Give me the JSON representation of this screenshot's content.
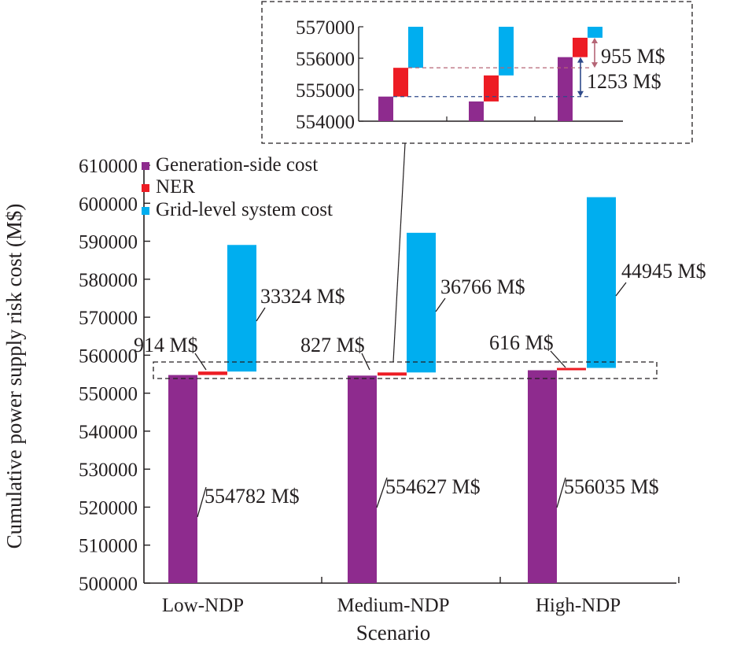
{
  "chart_data": {
    "type": "bar",
    "subtype": "waterfall-stacked",
    "xlabel": "Scenario",
    "ylabel": "Cumulative power supply risk cost (M$)",
    "ylim": [
      500000,
      610000
    ],
    "yticks": [
      "500000",
      "510000",
      "520000",
      "530000",
      "540000",
      "550000",
      "560000",
      "570000",
      "580000",
      "590000",
      "600000",
      "610000"
    ],
    "categories": [
      "Low-NDP",
      "Medium-NDP",
      "High-NDP"
    ],
    "series": [
      {
        "name": "Generation-side cost",
        "color": "#8e2b8e",
        "values": [
          554782,
          554627,
          556035
        ],
        "labels": [
          "554782 M$",
          "554627 M$",
          "556035 M$"
        ]
      },
      {
        "name": "NER",
        "color": "#ed1c24",
        "values": [
          914,
          827,
          616
        ],
        "labels": [
          "914 M$",
          "827 M$",
          "616 M$"
        ]
      },
      {
        "name": "Grid-level system cost",
        "color": "#00aeef",
        "values": [
          33324,
          36766,
          44945
        ],
        "labels": [
          "33324 M$",
          "36766 M$",
          "44945 M$"
        ]
      }
    ],
    "legend_position": "top-left",
    "grid": false,
    "inset": {
      "ylim": [
        554000,
        557000
      ],
      "yticks": [
        "554000",
        "555000",
        "556000",
        "557000"
      ],
      "annotations": [
        "955 M$",
        "1253 M$"
      ]
    }
  }
}
